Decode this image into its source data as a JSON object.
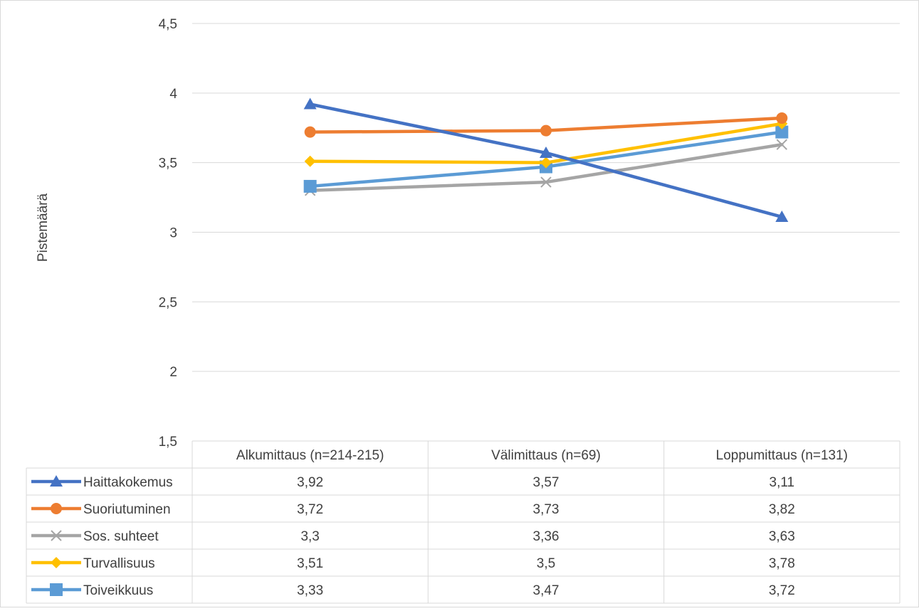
{
  "chart_data": {
    "type": "line",
    "title": "",
    "xlabel": "",
    "ylabel": "Pistemäärä",
    "ylim": [
      1.5,
      4.5
    ],
    "y_ticks": [
      "1,5",
      "2",
      "2,5",
      "3",
      "3,5",
      "4",
      "4,5"
    ],
    "y_tick_values": [
      1.5,
      2,
      2.5,
      3,
      3.5,
      4,
      4.5
    ],
    "grid": true,
    "legend": "data-table-below",
    "categories": [
      "Alkumittaus (n=214-215)",
      "Välimittaus (n=69)",
      "Loppumittaus (n=131)"
    ],
    "series": [
      {
        "name": "Haittakokemus",
        "values": [
          3.92,
          3.57,
          3.11
        ],
        "labels": [
          "3,92",
          "3,57",
          "3,11"
        ],
        "color": "#4472C4",
        "marker": "triangle"
      },
      {
        "name": "Suoriutuminen",
        "values": [
          3.72,
          3.73,
          3.82
        ],
        "labels": [
          "3,72",
          "3,73",
          "3,82"
        ],
        "color": "#ED7D31",
        "marker": "circle"
      },
      {
        "name": "Sos. suhteet",
        "values": [
          3.3,
          3.36,
          3.63
        ],
        "labels": [
          "3,3",
          "3,36",
          "3,63"
        ],
        "color": "#A5A5A5",
        "marker": "x"
      },
      {
        "name": "Turvallisuus",
        "values": [
          3.51,
          3.5,
          3.78
        ],
        "labels": [
          "3,51",
          "3,5",
          "3,78"
        ],
        "color": "#FFC000",
        "marker": "diamond"
      },
      {
        "name": "Toiveikkuus",
        "values": [
          3.33,
          3.47,
          3.72
        ],
        "labels": [
          "3,33",
          "3,47",
          "3,72"
        ],
        "color": "#5B9BD5",
        "marker": "square"
      }
    ]
  }
}
